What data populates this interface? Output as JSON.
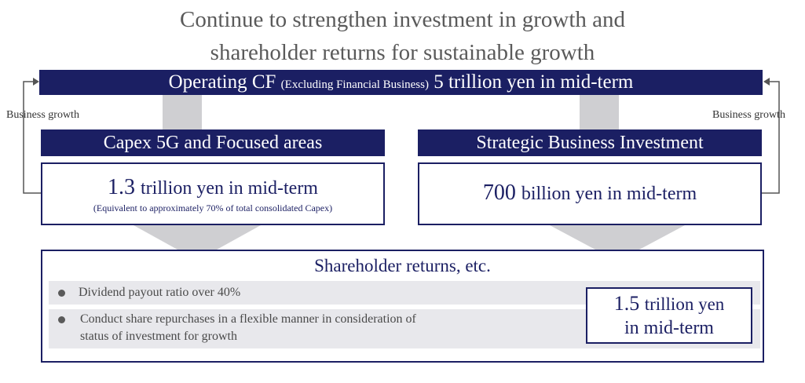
{
  "title": {
    "line1": "Continue to strengthen investment in growth and",
    "line2": "shareholder returns for sustainable growth"
  },
  "operating_cf": {
    "label": "Operating CF",
    "qualifier": "(Excluding Financial Business)",
    "amount": "5 trillion yen in mid-term"
  },
  "business_growth_left": "Business growth",
  "business_growth_right": "Business growth",
  "capex": {
    "header": "Capex 5G and Focused areas",
    "amount_number": "1.3",
    "amount_text": "trillion yen in mid-term",
    "note": "(Equivalent to approximately 70% of total consolidated Capex)"
  },
  "strategic": {
    "header": "Strategic Business Investment",
    "amount_number": "700",
    "amount_text": "billion yen in mid-term"
  },
  "shareholder": {
    "title": "Shareholder returns, etc.",
    "bullets": [
      "Dividend payout ratio over 40%",
      "Conduct share repurchases in a flexible manner in consideration of",
      "status of investment for growth"
    ],
    "amount_number": "1.5",
    "amount_text": "trillion yen",
    "amount_line2": "in mid-term"
  },
  "colors": {
    "navy": "#1b1f63",
    "arrow_gray": "#cfcfd2",
    "row_gray": "#e8e8ec",
    "title_gray": "#5a5a5a"
  }
}
